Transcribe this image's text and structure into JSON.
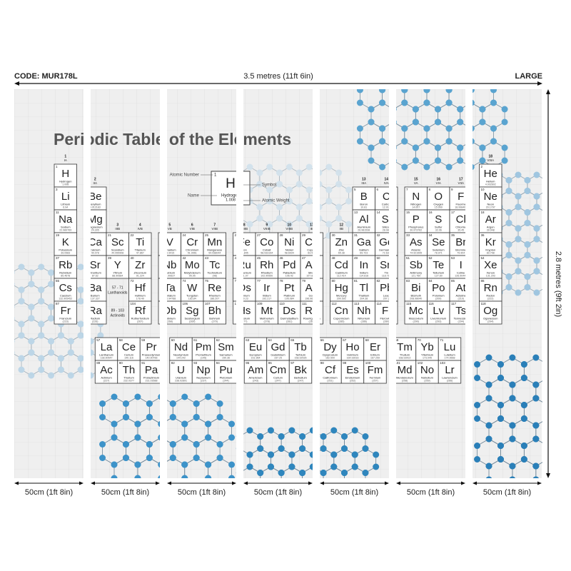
{
  "header": {
    "code": "CODE: MUR178L",
    "width": "3.5 metres (11ft 6in)",
    "size": "LARGE",
    "height": "2.8 metres (9ft 2in)"
  },
  "panels": [
    "50cm (1ft 8in)",
    "50cm (1ft 8in)",
    "50cm (1ft 8in)",
    "50cm (1ft 8in)",
    "50cm (1ft 8in)",
    "50cm (1ft 8in)",
    "50cm (1ft 8in)"
  ],
  "title": "Periodic Table of the Elements",
  "key": {
    "number": 1,
    "symbol": "H",
    "name": "Hydrogen",
    "weight": "1.008",
    "labels": [
      "Atomic Number",
      "Symbol",
      "Name",
      "Atomic Weight"
    ]
  },
  "groups": [
    [
      1,
      "IA"
    ],
    [
      2,
      "IIA"
    ],
    [
      3,
      "IIIB"
    ],
    [
      4,
      "IVB"
    ],
    [
      5,
      "VB"
    ],
    [
      6,
      "VIB"
    ],
    [
      7,
      "VIIB"
    ],
    [
      8,
      "VIIIB"
    ],
    [
      9,
      "VIIIB"
    ],
    [
      10,
      "VIIIB"
    ],
    [
      11,
      "IB"
    ],
    [
      12,
      "IIB"
    ],
    [
      13,
      "IIIA"
    ],
    [
      14,
      "IVA"
    ],
    [
      15,
      "VA"
    ],
    [
      16,
      "VIA"
    ],
    [
      17,
      "VIIA"
    ],
    [
      18,
      "VIIIA"
    ]
  ],
  "placeholders": [
    [
      "57 - 71",
      "Lanthanoids"
    ],
    [
      "89 - 103",
      "Actinoids"
    ]
  ],
  "elements": [
    [
      1,
      "H",
      "Hydrogen",
      "1.008"
    ],
    [
      2,
      "He",
      "Helium",
      "4.002602"
    ],
    [
      3,
      "Li",
      "Lithium",
      "6.94"
    ],
    [
      4,
      "Be",
      "Beryllium",
      "9.012183"
    ],
    [
      5,
      "B",
      "Boron",
      "10.81"
    ],
    [
      6,
      "C",
      "Carbon",
      "12.011"
    ],
    [
      7,
      "N",
      "Nitrogen",
      "14.007"
    ],
    [
      8,
      "O",
      "Oxygen",
      "15.999"
    ],
    [
      9,
      "F",
      "Fluorine",
      "18.998403"
    ],
    [
      10,
      "Ne",
      "Neon",
      "20.1797"
    ],
    [
      11,
      "Na",
      "Sodium",
      "22.989769"
    ],
    [
      12,
      "Mg",
      "Magnesium",
      "24.305"
    ],
    [
      13,
      "Al",
      "Aluminium",
      "26.981538"
    ],
    [
      14,
      "Si",
      "Silicon",
      "28.085"
    ],
    [
      15,
      "P",
      "Phosphorus",
      "30.973762"
    ],
    [
      16,
      "S",
      "Sulfur",
      "32.06"
    ],
    [
      17,
      "Cl",
      "Chlorine",
      "35.45"
    ],
    [
      18,
      "Ar",
      "Argon",
      "39.948"
    ],
    [
      19,
      "K",
      "Potassium",
      "39.0983"
    ],
    [
      20,
      "Ca",
      "Calcium",
      "40.078"
    ],
    [
      21,
      "Sc",
      "Scandium",
      "44.955908"
    ],
    [
      22,
      "Ti",
      "Titanium",
      "47.867"
    ],
    [
      23,
      "V",
      "Vanadium",
      "50.9415"
    ],
    [
      24,
      "Cr",
      "Chromium",
      "51.9961"
    ],
    [
      25,
      "Mn",
      "Manganese",
      "54.938044"
    ],
    [
      26,
      "Fe",
      "Iron",
      "55.845"
    ],
    [
      27,
      "Co",
      "Cobalt",
      "58.933194"
    ],
    [
      28,
      "Ni",
      "Nickel",
      "58.6934"
    ],
    [
      29,
      "Cu",
      "Copper",
      "63.546"
    ],
    [
      30,
      "Zn",
      "Zinc",
      "65.38"
    ],
    [
      31,
      "Ga",
      "Gallium",
      "69.723"
    ],
    [
      32,
      "Ge",
      "Germanium",
      "72.630"
    ],
    [
      33,
      "As",
      "Arsenic",
      "74.921595"
    ],
    [
      34,
      "Se",
      "Selenium",
      "78.971"
    ],
    [
      35,
      "Br",
      "Bromine",
      "79.904"
    ],
    [
      36,
      "Kr",
      "Krypton",
      "83.798"
    ],
    [
      37,
      "Rb",
      "Rubidium",
      "85.4678"
    ],
    [
      38,
      "Sr",
      "Strontium",
      "87.62"
    ],
    [
      39,
      "Y",
      "Yttrium",
      "88.90584"
    ],
    [
      40,
      "Zr",
      "Zirconium",
      "91.224"
    ],
    [
      41,
      "Nb",
      "Niobium",
      "92.90637"
    ],
    [
      42,
      "Mo",
      "Molybdenum",
      "95.95"
    ],
    [
      43,
      "Tc",
      "Technetium",
      "(98)"
    ],
    [
      44,
      "Ru",
      "Ruthenium",
      "101.07"
    ],
    [
      45,
      "Rh",
      "Rhodium",
      "102.90550"
    ],
    [
      46,
      "Pd",
      "Palladium",
      "106.42"
    ],
    [
      47,
      "Ag",
      "Silver",
      "107.8682"
    ],
    [
      48,
      "Cd",
      "Cadmium",
      "112.414"
    ],
    [
      49,
      "In",
      "Indium",
      "114.818"
    ],
    [
      50,
      "Sn",
      "Tin",
      "118.710"
    ],
    [
      51,
      "Sb",
      "Antimony",
      "121.760"
    ],
    [
      52,
      "Te",
      "Tellurium",
      "127.60"
    ],
    [
      53,
      "I",
      "Iodine",
      "126.90447"
    ],
    [
      54,
      "Xe",
      "Xenon",
      "131.293"
    ],
    [
      55,
      "Cs",
      "Caesium",
      "132.905452"
    ],
    [
      56,
      "Ba",
      "Barium",
      "137.327"
    ],
    [
      57,
      "La",
      "Lanthanum",
      "138.90547"
    ],
    [
      58,
      "Ce",
      "Cerium",
      "140.116"
    ],
    [
      59,
      "Pr",
      "Praseodymium",
      "140.90766"
    ],
    [
      60,
      "Nd",
      "Neodymium",
      "144.242"
    ],
    [
      61,
      "Pm",
      "Promethium",
      "(145)"
    ],
    [
      62,
      "Sm",
      "Samarium",
      "150.36"
    ],
    [
      63,
      "Eu",
      "Europium",
      "151.964"
    ],
    [
      64,
      "Gd",
      "Gadolinium",
      "157.25"
    ],
    [
      65,
      "Tb",
      "Terbium",
      "158.92535"
    ],
    [
      66,
      "Dy",
      "Dysprosium",
      "162.500"
    ],
    [
      67,
      "Ho",
      "Holmium",
      "164.93033"
    ],
    [
      68,
      "Er",
      "Erbium",
      "167.259"
    ],
    [
      69,
      "Tm",
      "Thulium",
      "168.93422"
    ],
    [
      70,
      "Yb",
      "Ytterbium",
      "173.045"
    ],
    [
      71,
      "Lu",
      "Lutetium",
      "174.9668"
    ],
    [
      72,
      "Hf",
      "Hafnium",
      "178.49"
    ],
    [
      73,
      "Ta",
      "Tantalum",
      "180.94788"
    ],
    [
      74,
      "W",
      "Tungsten",
      "183.84"
    ],
    [
      75,
      "Re",
      "Rhenium",
      "186.207"
    ],
    [
      76,
      "Os",
      "Osmium",
      "190.23"
    ],
    [
      77,
      "Ir",
      "Iridium",
      "192.217"
    ],
    [
      78,
      "Pt",
      "Platinum",
      "195.084"
    ],
    [
      79,
      "Au",
      "Gold",
      "196.966569"
    ],
    [
      80,
      "Hg",
      "Mercury",
      "200.592"
    ],
    [
      81,
      "Tl",
      "Thallium",
      "204.38"
    ],
    [
      82,
      "Pb",
      "Lead",
      "207.2"
    ],
    [
      83,
      "Bi",
      "Bismuth",
      "208.98040"
    ],
    [
      84,
      "Po",
      "Polonium",
      "(209)"
    ],
    [
      85,
      "At",
      "Astatine",
      "(210)"
    ],
    [
      86,
      "Rn",
      "Radon",
      "(222)"
    ],
    [
      87,
      "Fr",
      "Francium",
      "(223)"
    ],
    [
      88,
      "Ra",
      "Radium",
      "(226)"
    ],
    [
      89,
      "Ac",
      "Actinium",
      "(227)"
    ],
    [
      90,
      "Th",
      "Thorium",
      "232.0377"
    ],
    [
      91,
      "Pa",
      "Protactinium",
      "231.03588"
    ],
    [
      92,
      "U",
      "Uranium",
      "238.02891"
    ],
    [
      93,
      "Np",
      "Neptunium",
      "(237)"
    ],
    [
      94,
      "Pu",
      "Plutonium",
      "(244)"
    ],
    [
      95,
      "Am",
      "Americium",
      "(243)"
    ],
    [
      96,
      "Cm",
      "Curium",
      "(247)"
    ],
    [
      97,
      "Bk",
      "Berkelium",
      "(247)"
    ],
    [
      98,
      "Cf",
      "Californium",
      "(251)"
    ],
    [
      99,
      "Es",
      "Einsteinium",
      "(252)"
    ],
    [
      100,
      "Fm",
      "Fermium",
      "(257)"
    ],
    [
      101,
      "Md",
      "Mendelevium",
      "(258)"
    ],
    [
      102,
      "No",
      "Nobelium",
      "(259)"
    ],
    [
      103,
      "Lr",
      "Lawrencium",
      "(266)"
    ],
    [
      104,
      "Rf",
      "Rutherfordium",
      "(267)"
    ],
    [
      105,
      "Db",
      "Dubnium",
      "(268)"
    ],
    [
      106,
      "Sg",
      "Seaborgium",
      "(269)"
    ],
    [
      107,
      "Bh",
      "Bohrium",
      "(270)"
    ],
    [
      108,
      "Hs",
      "Hassium",
      "(277)"
    ],
    [
      109,
      "Mt",
      "Meitnerium",
      "(278)"
    ],
    [
      110,
      "Ds",
      "Darmstadtium",
      "(281)"
    ],
    [
      111,
      "Rg",
      "Roentgenium",
      "(282)"
    ],
    [
      112,
      "Cn",
      "Copernicium",
      "(285)"
    ],
    [
      113,
      "Nh",
      "Nihonium",
      "(286)"
    ],
    [
      114,
      "Fl",
      "Flerovium",
      "(289)"
    ],
    [
      115,
      "Mc",
      "Moscovium",
      "(290)"
    ],
    [
      116,
      "Lv",
      "Livermorium",
      "(293)"
    ],
    [
      117,
      "Ts",
      "Tennessine",
      "(294)"
    ],
    [
      118,
      "Og",
      "Oganesson",
      "(294)"
    ]
  ]
}
